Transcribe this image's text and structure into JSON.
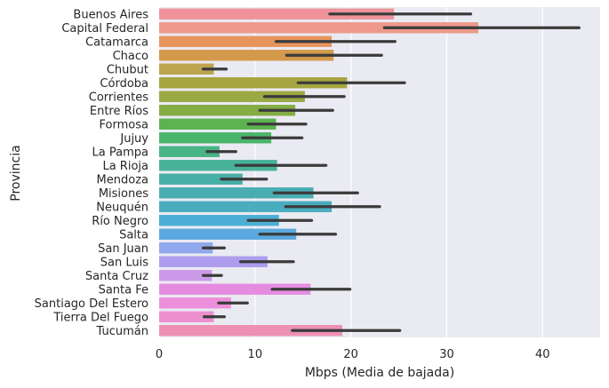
{
  "chart_data": {
    "type": "bar",
    "orientation": "horizontal",
    "title": "",
    "xlabel": "Mbps (Media de bajada)",
    "ylabel": "Provincia",
    "xlim": [
      0,
      46
    ],
    "xticks": [
      0,
      10,
      20,
      30,
      40
    ],
    "xtick_labels": [
      "0",
      "10",
      "20",
      "30",
      "40"
    ],
    "grid": true,
    "categories": [
      "Buenos Aires",
      "Capital Federal",
      "Catamarca",
      "Chaco",
      "Chubut",
      "Córdoba",
      "Corrientes",
      "Entre Ríos",
      "Formosa",
      "Jujuy",
      "La Pampa",
      "La Rioja",
      "Mendoza",
      "Misiones",
      "Neuquén",
      "Río Negro",
      "Salta",
      "San Juan",
      "San Luis",
      "Santa Cruz",
      "Santa Fe",
      "Santiago Del Estero",
      "Tierra Del Fuego",
      "Tucumán"
    ],
    "values": [
      24.5,
      33.3,
      18.0,
      18.2,
      5.7,
      19.6,
      15.2,
      14.2,
      12.2,
      11.7,
      6.3,
      12.3,
      8.7,
      16.1,
      18.0,
      12.5,
      14.3,
      5.6,
      11.3,
      5.5,
      15.8,
      7.5,
      5.7,
      19.1
    ],
    "ci_low": [
      17.8,
      23.5,
      12.2,
      13.3,
      4.6,
      14.5,
      11.0,
      10.5,
      9.3,
      8.7,
      5.0,
      8.0,
      6.5,
      12.0,
      13.2,
      9.3,
      10.5,
      4.6,
      8.5,
      4.6,
      11.8,
      6.2,
      4.7,
      13.9
    ],
    "ci_high": [
      32.5,
      43.8,
      24.6,
      23.2,
      7.0,
      25.6,
      19.3,
      18.1,
      15.3,
      14.9,
      8.0,
      17.4,
      11.2,
      20.7,
      23.0,
      15.9,
      18.4,
      6.8,
      14.0,
      6.5,
      19.9,
      9.2,
      6.8,
      25.1
    ],
    "colors": [
      "#f0929b",
      "#ee998c",
      "#e8955d",
      "#d49a4c",
      "#bda44e",
      "#a7a540",
      "#9ba944",
      "#84ad45",
      "#5cb350",
      "#4ab56a",
      "#49b486",
      "#48b199",
      "#47afa6",
      "#48aeb2",
      "#4aadbf",
      "#4baed4",
      "#5aa9e0",
      "#92a8ec",
      "#ad9ded",
      "#cc99e8",
      "#e58ce1",
      "#ee8fdb",
      "#ed8fce",
      "#ee90b2"
    ],
    "errorbar_color": "#3b3b3b"
  }
}
